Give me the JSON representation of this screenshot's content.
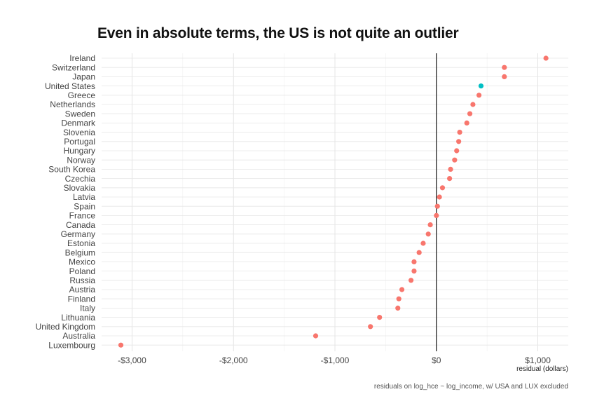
{
  "chart_data": {
    "type": "scatter",
    "title": "Even in absolute terms, the US is not quite an outlier",
    "xlabel": "residual (dollars)",
    "ylabel": "",
    "caption": "residuals on log_hce ~ log_income, w/ USA and LUX excluded",
    "xlim": [
      -3300,
      1300
    ],
    "xticks": [
      -3000,
      -2000,
      -1000,
      0,
      1000
    ],
    "xtick_labels": [
      "-$3,000",
      "-$2,000",
      "-$1,000",
      "$0",
      "$1,000"
    ],
    "zero_line": true,
    "grid": true,
    "colors": {
      "default": "#f8766d",
      "highlight": "#00bfc4",
      "zero_line": "#000000"
    },
    "points": [
      {
        "country": "Ireland",
        "residual": 1080,
        "highlight": false
      },
      {
        "country": "Switzerland",
        "residual": 670,
        "highlight": false
      },
      {
        "country": "Japan",
        "residual": 670,
        "highlight": false
      },
      {
        "country": "United States",
        "residual": 440,
        "highlight": true
      },
      {
        "country": "Greece",
        "residual": 420,
        "highlight": false
      },
      {
        "country": "Netherlands",
        "residual": 360,
        "highlight": false
      },
      {
        "country": "Sweden",
        "residual": 330,
        "highlight": false
      },
      {
        "country": "Denmark",
        "residual": 300,
        "highlight": false
      },
      {
        "country": "Slovenia",
        "residual": 230,
        "highlight": false
      },
      {
        "country": "Portugal",
        "residual": 220,
        "highlight": false
      },
      {
        "country": "Hungary",
        "residual": 200,
        "highlight": false
      },
      {
        "country": "Norway",
        "residual": 180,
        "highlight": false
      },
      {
        "country": "South Korea",
        "residual": 140,
        "highlight": false
      },
      {
        "country": "Czechia",
        "residual": 130,
        "highlight": false
      },
      {
        "country": "Slovakia",
        "residual": 60,
        "highlight": false
      },
      {
        "country": "Latvia",
        "residual": 30,
        "highlight": false
      },
      {
        "country": "Spain",
        "residual": 10,
        "highlight": false
      },
      {
        "country": "France",
        "residual": 0,
        "highlight": false
      },
      {
        "country": "Canada",
        "residual": -60,
        "highlight": false
      },
      {
        "country": "Germany",
        "residual": -80,
        "highlight": false
      },
      {
        "country": "Estonia",
        "residual": -130,
        "highlight": false
      },
      {
        "country": "Belgium",
        "residual": -170,
        "highlight": false
      },
      {
        "country": "Mexico",
        "residual": -220,
        "highlight": false
      },
      {
        "country": "Poland",
        "residual": -220,
        "highlight": false
      },
      {
        "country": "Russia",
        "residual": -250,
        "highlight": false
      },
      {
        "country": "Austria",
        "residual": -340,
        "highlight": false
      },
      {
        "country": "Finland",
        "residual": -370,
        "highlight": false
      },
      {
        "country": "Italy",
        "residual": -380,
        "highlight": false
      },
      {
        "country": "Lithuania",
        "residual": -560,
        "highlight": false
      },
      {
        "country": "United Kingdom",
        "residual": -650,
        "highlight": false
      },
      {
        "country": "Australia",
        "residual": -1190,
        "highlight": false
      },
      {
        "country": "Luxembourg",
        "residual": -3110,
        "highlight": false
      }
    ]
  }
}
